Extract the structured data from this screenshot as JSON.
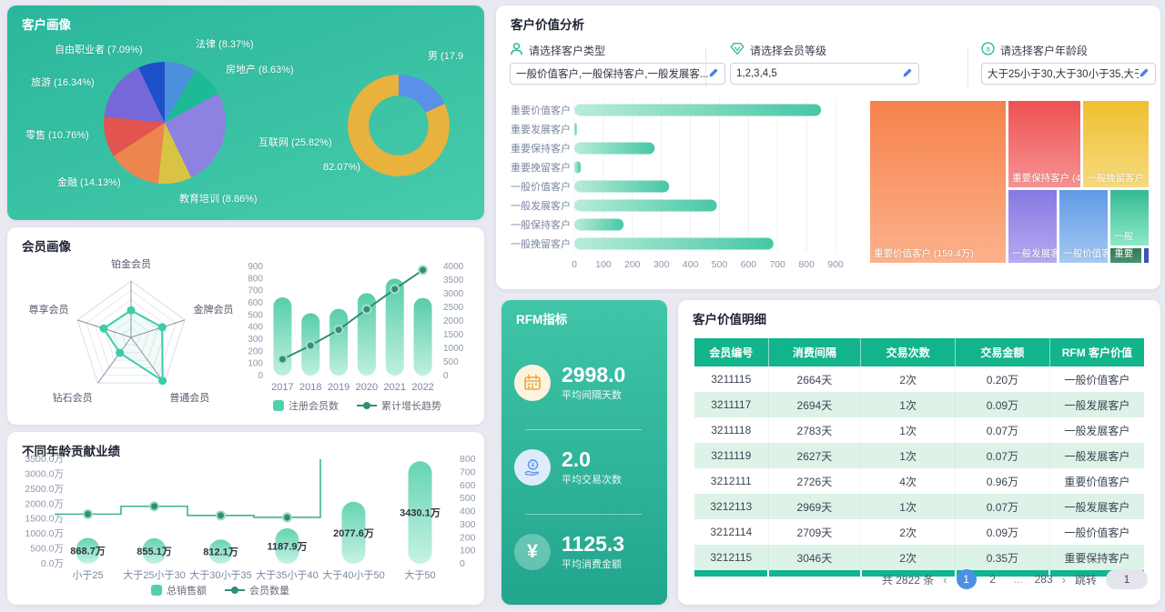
{
  "panels": {
    "customer_portrait": {
      "title": "客户画像"
    },
    "member_portrait": {
      "title": "会员画像"
    },
    "age_performance": {
      "title": "不同年龄贡献业绩"
    },
    "customer_value": {
      "title": "客户价值分析",
      "filters": [
        {
          "icon": "person-icon",
          "label": "请选择客户类型",
          "value": "一般价值客户,一般保持客户,一般发展客..."
        },
        {
          "icon": "vip-diamond-icon",
          "label": "请选择会员等级",
          "value": "1,2,3,4,5"
        },
        {
          "icon": "circle-a-icon",
          "label": "请选择客户年龄段",
          "value": "大于25小于30,大于30小于35,大于35小于..."
        }
      ]
    },
    "rfm": {
      "title": "RFM指标",
      "metrics": [
        {
          "icon": "calendar-icon",
          "value": "2998.0",
          "label": "平均间隔天数"
        },
        {
          "icon": "hand-coin-icon",
          "value": "2.0",
          "label": "平均交易次数"
        },
        {
          "icon": "yuan-icon",
          "value": "1125.3",
          "label": "平均消费金额"
        }
      ]
    },
    "detail": {
      "title": "客户价值明细",
      "table": {
        "headers": [
          "会员编号",
          "消费间隔",
          "交易次数",
          "交易金额",
          "RFM 客户价值"
        ],
        "rows": [
          [
            "3211115",
            "2664天",
            "2次",
            "0.20万",
            "一般价值客户"
          ],
          [
            "3211117",
            "2694天",
            "1次",
            "0.09万",
            "一般发展客户"
          ],
          [
            "3211118",
            "2783天",
            "1次",
            "0.07万",
            "一般发展客户"
          ],
          [
            "3211119",
            "2627天",
            "1次",
            "0.07万",
            "一般发展客户"
          ],
          [
            "3212111",
            "2726天",
            "4次",
            "0.96万",
            "重要价值客户"
          ],
          [
            "3212113",
            "2969天",
            "1次",
            "0.07万",
            "一般发展客户"
          ],
          [
            "3212114",
            "2709天",
            "2次",
            "0.09万",
            "一般价值客户"
          ],
          [
            "3212115",
            "3046天",
            "2次",
            "0.35万",
            "重要保持客户"
          ]
        ]
      },
      "pagination": {
        "total_label": "共 2822 条",
        "prev": "‹",
        "pages": [
          "1",
          "2",
          "...",
          "283"
        ],
        "active_page": "1",
        "next": "›",
        "jump_label": "跳转",
        "jump_value": "1"
      }
    }
  },
  "chart_data": [
    {
      "id": "occupation_pie",
      "type": "pie",
      "slices": [
        {
          "name": "法律",
          "pct": 8.37,
          "label": "法律 (8.37%)",
          "color": "#4b90dd"
        },
        {
          "name": "房地产",
          "pct": 8.63,
          "label": "房地产 (8.63%)",
          "color": "#1cbb96"
        },
        {
          "name": "互联网",
          "pct": 25.82,
          "label": "互联网 (25.82%)",
          "color": "#8d81e2"
        },
        {
          "name": "教育培训",
          "pct": 8.86,
          "label": "教育培训 (8.86%)",
          "color": "#d8c442"
        },
        {
          "name": "金融",
          "pct": 14.13,
          "label": "金融 (14.13%)",
          "color": "#ec864e"
        },
        {
          "name": "零售",
          "pct": 10.76,
          "label": "零售 (10.76%)",
          "color": "#e15450"
        },
        {
          "name": "旅游",
          "pct": 16.34,
          "label": "旅游 (16.34%)",
          "color": "#7668d8"
        },
        {
          "name": "自由职业者",
          "pct": 7.09,
          "label": "自由职业者 (7.09%)",
          "color": "#1e50c8"
        }
      ],
      "label_pos": [
        [
          207,
          34
        ],
        [
          240,
          62
        ],
        [
          276,
          142
        ],
        [
          189,
          204
        ],
        [
          55,
          186
        ],
        [
          20,
          134
        ],
        [
          26,
          76
        ],
        [
          52,
          40
        ]
      ]
    },
    {
      "id": "gender_donut",
      "type": "pie",
      "donut": true,
      "slices": [
        {
          "name": "男",
          "pct": 17.93,
          "label": "男 (17.9",
          "color": "#5b8fe8"
        },
        {
          "name": "女",
          "pct": 82.07,
          "label": "82.07%)",
          "color": "#e8b23c"
        }
      ],
      "label_pos": [
        [
          462,
          47
        ],
        [
          347,
          172
        ]
      ]
    },
    {
      "id": "member_radar",
      "type": "radar",
      "axes": [
        "铂金会员",
        "金牌会员",
        "普通会员",
        "钻石会员",
        "尊享会员"
      ],
      "values": [
        48,
        58,
        95,
        34,
        51
      ],
      "max": 100
    },
    {
      "id": "member_growth",
      "type": "bar-line",
      "categories": [
        "2017",
        "2018",
        "2019",
        "2020",
        "2021",
        "2022"
      ],
      "series": [
        {
          "name": "注册会员数",
          "type": "bar",
          "axis": "left",
          "values": [
            645,
            515,
            550,
            680,
            800,
            640
          ]
        },
        {
          "name": "累计增长趋势",
          "type": "line",
          "axis": "right",
          "values": [
            600,
            1100,
            1680,
            2430,
            3170,
            3870
          ]
        }
      ],
      "left_axis": {
        "min": 0,
        "max": 900,
        "step": 100,
        "tick_labels": [
          "0",
          "100",
          "200",
          "300",
          "400",
          "500",
          "600",
          "700",
          "800",
          "900"
        ]
      },
      "right_axis": {
        "min": 0,
        "max": 4000,
        "step": 500,
        "tick_labels": [
          "0",
          "500",
          "1000",
          "1500",
          "2000",
          "2500",
          "3000",
          "3500",
          "4000"
        ]
      }
    },
    {
      "id": "age_performance",
      "type": "bar-line",
      "categories": [
        "小于25",
        "大于25小于30",
        "大于30小于35",
        "大于35小于40",
        "大于40小于50",
        "大于50"
      ],
      "series": [
        {
          "name": "总销售额",
          "type": "bar",
          "axis": "left",
          "values": [
            868.7,
            855.1,
            812.1,
            1187.9,
            2077.6,
            3430.1
          ],
          "value_labels": [
            "868.7万",
            "855.1万",
            "812.1万",
            "1187.9万",
            "2077.6万",
            "3430.1万"
          ]
        },
        {
          "name": "会员数量",
          "type": "step-line",
          "axis": "right",
          "values": [
            380,
            440,
            370,
            355
          ],
          "note": "line rises above right-axis max after 4th category and is clipped at plot top"
        }
      ],
      "left_axis": {
        "min": 0,
        "max": 3500,
        "step": 500,
        "tick_labels": [
          "0.0万",
          "500.0万",
          "1000.0万",
          "1500.0万",
          "2000.0万",
          "2500.0万",
          "3000.0万",
          "3500.0万"
        ]
      },
      "right_axis": {
        "min": 0,
        "max": 800,
        "step": 100,
        "tick_labels": [
          "0",
          "100",
          "200",
          "300",
          "400",
          "500",
          "600",
          "700",
          "800"
        ]
      }
    },
    {
      "id": "customer_value_hbar",
      "type": "bar-horizontal",
      "categories": [
        "重要价值客户",
        "重要发展客户",
        "重要保持客户",
        "重要挽留客户",
        "一般价值客户",
        "一般发展客户",
        "一般保持客户",
        "一般挽留客户"
      ],
      "values": [
        850,
        8,
        277,
        22,
        327,
        491,
        170,
        686
      ],
      "x_axis": {
        "min": 0,
        "max": 900,
        "step": 100,
        "tick_labels": [
          "0",
          "100",
          "200",
          "300",
          "400",
          "500",
          "600",
          "700",
          "800",
          "900"
        ]
      }
    },
    {
      "id": "customer_value_treemap",
      "type": "treemap",
      "items": [
        {
          "label": "重要价值客户 (159.4万)",
          "colors": [
            "#f5824c",
            "#fcb18c"
          ],
          "rect": [
            0,
            0,
            0.49,
            1
          ]
        },
        {
          "label": "重要保持客户 (46.",
          "colors": [
            "#ee5150",
            "#f69294"
          ],
          "rect": [
            0.494,
            0,
            0.262,
            0.537
          ]
        },
        {
          "label": "一般挽留客户",
          "colors": [
            "#eec02f",
            "#f6da7e"
          ],
          "rect": [
            0.76,
            0,
            0.24,
            0.537
          ]
        },
        {
          "label": "一般发展客",
          "colors": [
            "#8678e2",
            "#b5abf0"
          ],
          "rect": [
            0.494,
            0.542,
            0.178,
            0.458
          ]
        },
        {
          "label": "一般价值客",
          "colors": [
            "#619ae6",
            "#a4c9f3"
          ],
          "rect": [
            0.676,
            0.542,
            0.178,
            0.458
          ]
        },
        {
          "label": "一般",
          "colors": [
            "#35b992",
            "#8deac9"
          ],
          "rect": [
            0.858,
            0.542,
            0.142,
            0.352
          ]
        },
        {
          "label": "重要",
          "colors": [
            "#2f7a58",
            "#46926e"
          ],
          "rect": [
            0.858,
            0.9,
            0.115,
            0.1
          ]
        },
        {
          "label": "",
          "colors": [
            "#3f51b5",
            "#3f51b5"
          ],
          "rect": [
            0.977,
            0.9,
            0.023,
            0.1
          ]
        }
      ]
    }
  ]
}
